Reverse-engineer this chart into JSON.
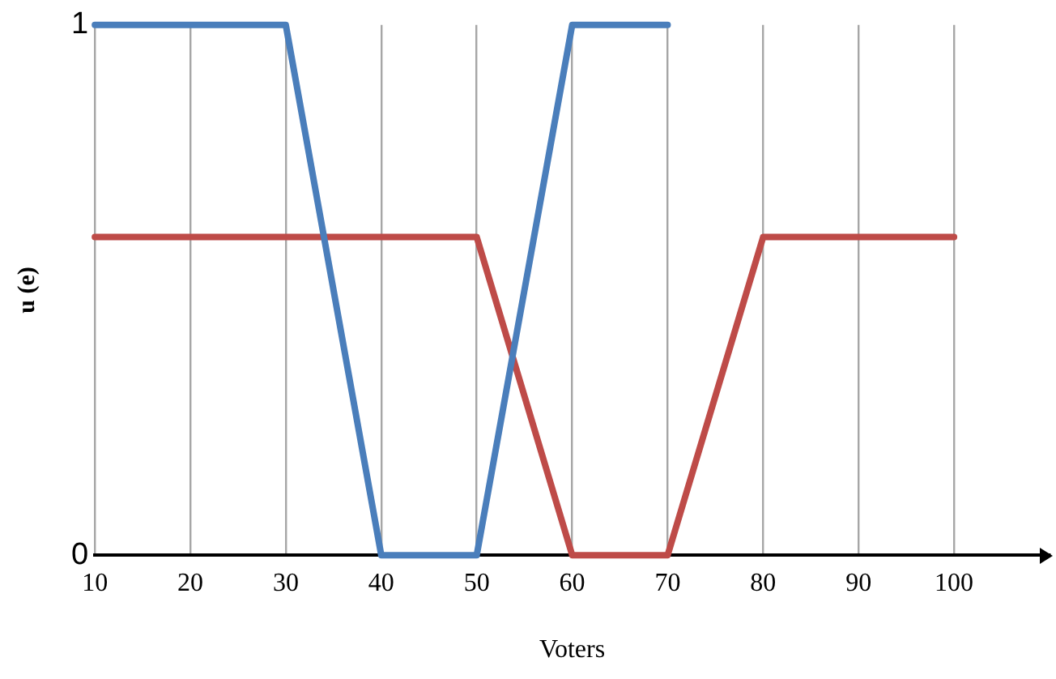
{
  "chart_data": {
    "type": "line",
    "xlabel": "Voters",
    "ylabel": "u (e)",
    "xlim": [
      10,
      110
    ],
    "xticks": [
      10,
      20,
      30,
      40,
      50,
      60,
      70,
      80,
      90,
      100
    ],
    "ylim": [
      0,
      1
    ],
    "yticks": [
      0,
      1
    ],
    "series": [
      {
        "color": "#4a7ebb",
        "x": [
          10,
          20,
          30,
          40,
          50,
          60,
          70
        ],
        "values": [
          1,
          1,
          1,
          0,
          0,
          1,
          1
        ]
      },
      {
        "color": "#be4b48",
        "x": [
          10,
          20,
          30,
          40,
          50,
          60,
          70,
          80,
          90,
          100
        ],
        "values": [
          0.6,
          0.6,
          0.6,
          0.6,
          0.6,
          0,
          0,
          0.6,
          0.6,
          0.6
        ]
      }
    ],
    "grid": "x",
    "legend": false,
    "marker": "none",
    "line_style": "solid"
  }
}
